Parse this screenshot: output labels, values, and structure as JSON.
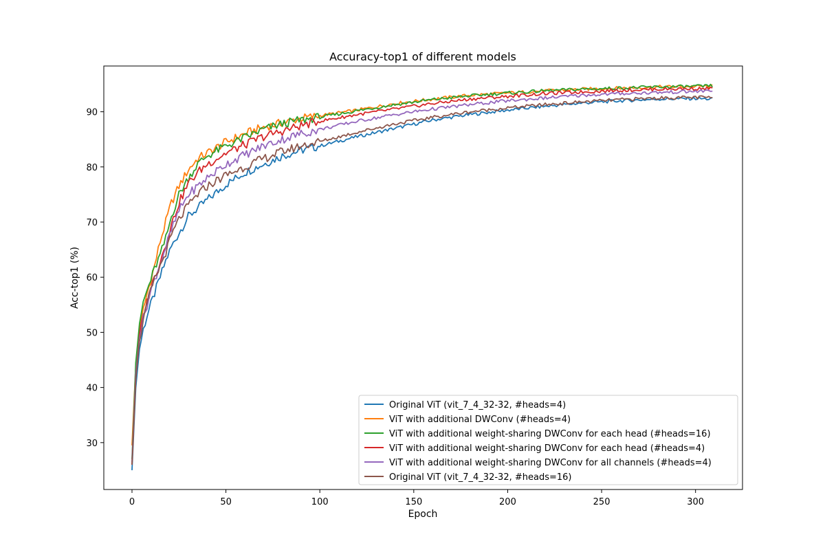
{
  "chart_data": {
    "type": "line",
    "title": "Accuracy-top1 of different models",
    "xlabel": "Epoch",
    "ylabel": "Acc-top1 (%)",
    "xlim": [
      -15,
      325
    ],
    "ylim": [
      21.5,
      98.3
    ],
    "xticks": [
      0,
      50,
      100,
      150,
      200,
      250,
      300
    ],
    "yticks": [
      30,
      40,
      50,
      60,
      70,
      80,
      90
    ],
    "grid": false,
    "legend_position": "lower-right",
    "x": [
      0,
      2,
      4,
      6,
      8,
      10,
      12,
      15,
      18,
      21,
      25,
      30,
      35,
      40,
      50,
      60,
      70,
      80,
      90,
      100,
      120,
      140,
      160,
      180,
      200,
      220,
      240,
      260,
      280,
      300,
      309
    ],
    "series": [
      {
        "name": "Original ViT (vit_7_4_32-32, #heads=4)",
        "color": "#1f77b4",
        "values": [
          25.0,
          40.0,
          47.0,
          50.5,
          53.0,
          55.0,
          57.0,
          60.0,
          63.0,
          65.5,
          68.0,
          71.0,
          72.5,
          74.0,
          76.8,
          79.0,
          80.5,
          82.0,
          83.0,
          83.8,
          85.5,
          87.0,
          88.5,
          89.5,
          90.3,
          91.0,
          91.6,
          92.0,
          92.3,
          92.4,
          92.3
        ]
      },
      {
        "name": "ViT with additional DWConv (#heads=4)",
        "color": "#ff7f0e",
        "values": [
          29.5,
          44.0,
          50.0,
          54.0,
          57.0,
          59.5,
          62.0,
          66.5,
          70.0,
          73.5,
          76.5,
          79.5,
          81.5,
          82.5,
          84.5,
          86.0,
          87.2,
          88.0,
          88.8,
          89.3,
          90.3,
          91.5,
          92.3,
          93.0,
          93.4,
          93.8,
          94.1,
          94.3,
          94.5,
          94.6,
          94.6
        ]
      },
      {
        "name": "ViT with additional weight-sharing DWConv for each head (#heads=16)",
        "color": "#2ca02c",
        "values": [
          27.0,
          44.5,
          51.5,
          55.5,
          57.5,
          59.5,
          61.5,
          64.0,
          67.0,
          71.0,
          75.0,
          78.0,
          80.5,
          82.0,
          83.8,
          85.3,
          86.8,
          87.8,
          88.5,
          89.0,
          90.2,
          91.3,
          92.2,
          92.9,
          93.4,
          93.8,
          94.1,
          94.3,
          94.5,
          94.6,
          94.7
        ]
      },
      {
        "name": "ViT with additional weight-sharing DWConv for each head (#heads=4)",
        "color": "#d62728",
        "values": [
          26.0,
          42.0,
          49.5,
          53.0,
          55.5,
          58.0,
          60.0,
          63.0,
          66.0,
          69.5,
          73.5,
          77.0,
          79.0,
          80.5,
          82.5,
          84.0,
          85.5,
          86.5,
          87.5,
          88.3,
          89.5,
          90.5,
          91.5,
          92.3,
          92.8,
          93.3,
          93.6,
          93.9,
          94.1,
          94.2,
          94.2
        ]
      },
      {
        "name": "ViT with additional weight-sharing DWConv for all channels (#heads=4)",
        "color": "#9467bd",
        "values": [
          26.5,
          42.5,
          49.0,
          52.5,
          55.0,
          57.5,
          59.5,
          62.5,
          65.5,
          68.5,
          72.0,
          75.0,
          76.5,
          78.0,
          80.5,
          82.2,
          83.8,
          85.0,
          86.0,
          86.8,
          88.3,
          89.5,
          90.5,
          91.3,
          92.0,
          92.5,
          93.0,
          93.3,
          93.5,
          93.7,
          93.8
        ]
      },
      {
        "name": "Original ViT (vit_7_4_32-32, #heads=16)",
        "color": "#8c564b",
        "values": [
          26.0,
          41.5,
          48.5,
          52.0,
          55.0,
          57.5,
          59.5,
          62.0,
          64.5,
          67.5,
          70.5,
          73.0,
          75.0,
          76.5,
          78.5,
          80.0,
          81.5,
          82.8,
          83.8,
          84.6,
          86.3,
          87.8,
          89.0,
          90.0,
          90.7,
          91.3,
          91.8,
          92.2,
          92.5,
          92.6,
          92.6
        ]
      }
    ]
  }
}
